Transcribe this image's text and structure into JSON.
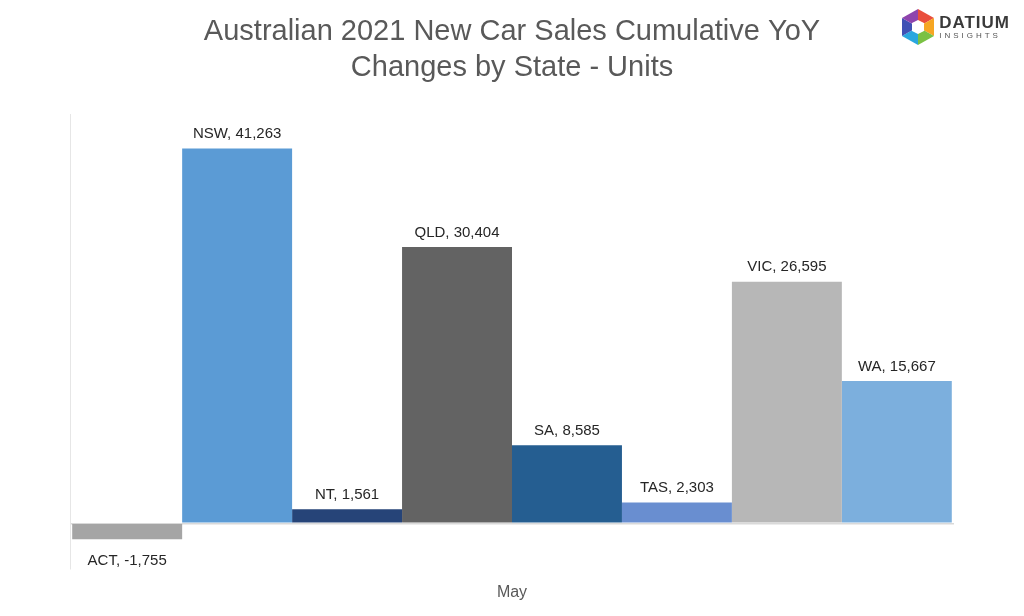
{
  "chart_data": {
    "type": "bar",
    "title": [
      "Australian 2021 New Car Sales Cumulative YoY",
      "Changes by State - Units"
    ],
    "logo": [
      "DATIUM",
      "INSIGHTS"
    ],
    "categories": [
      "May"
    ],
    "series": [
      {
        "name": "ACT",
        "color": "#a5a5a5",
        "values": [
          -1755
        ],
        "value_labels": [
          "ACT, -1,755"
        ]
      },
      {
        "name": "NSW",
        "color": "#5b9bd5",
        "values": [
          41263
        ],
        "value_labels": [
          "NSW, 41,263"
        ]
      },
      {
        "name": "NT",
        "color": "#264478",
        "values": [
          1561
        ],
        "value_labels": [
          "NT, 1,561"
        ]
      },
      {
        "name": "QLD",
        "color": "#636363",
        "values": [
          30404
        ],
        "value_labels": [
          "QLD, 30,404"
        ]
      },
      {
        "name": "SA",
        "color": "#255e91",
        "values": [
          8585
        ],
        "value_labels": [
          "SA, 8,585"
        ]
      },
      {
        "name": "TAS",
        "color": "#698ed0",
        "values": [
          2303
        ],
        "value_labels": [
          "TAS, 2,303"
        ]
      },
      {
        "name": "VIC",
        "color": "#b7b7b7",
        "values": [
          26595
        ],
        "value_labels": [
          "VIC, 26,595"
        ]
      },
      {
        "name": "WA",
        "color": "#7cafdd",
        "values": [
          15667
        ],
        "value_labels": [
          "WA, 15,667"
        ]
      }
    ],
    "ylim": [
      -5000,
      45000
    ],
    "yticks": [
      0
    ],
    "grid": true,
    "data_labels": true,
    "tick_labels": "x"
  }
}
